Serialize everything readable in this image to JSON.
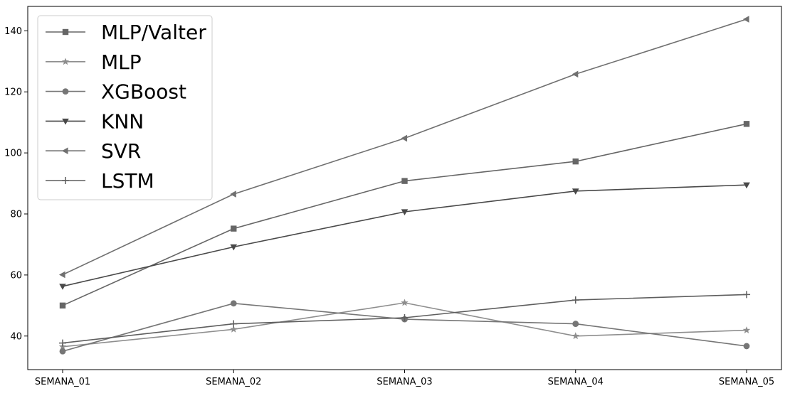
{
  "chart_data": {
    "type": "line",
    "title": "",
    "xlabel": "",
    "ylabel": "",
    "categories": [
      "SEMANA_01",
      "SEMANA_02",
      "SEMANA_03",
      "SEMANA_04",
      "SEMANA_05"
    ],
    "ylim": [
      29,
      148
    ],
    "yticks": [
      40,
      60,
      80,
      100,
      120,
      140
    ],
    "grid": false,
    "legend_position": "top-left",
    "series": [
      {
        "name": "MLP/Valter",
        "values": [
          50.0,
          75.2,
          90.8,
          97.2,
          109.5
        ],
        "marker": "square",
        "color": "#666666"
      },
      {
        "name": "MLP",
        "values": [
          36.5,
          42.2,
          50.9,
          40.0,
          41.9
        ],
        "marker": "star",
        "color": "#8e8e8e"
      },
      {
        "name": "XGBoost",
        "values": [
          35.0,
          50.7,
          45.5,
          44.0,
          36.7
        ],
        "marker": "circle",
        "color": "#767676"
      },
      {
        "name": "KNN",
        "values": [
          56.3,
          69.2,
          80.7,
          87.5,
          89.5
        ],
        "marker": "triangle-down",
        "color": "#494949"
      },
      {
        "name": "SVR",
        "values": [
          60.1,
          86.5,
          104.8,
          125.8,
          143.8
        ],
        "marker": "triangle-left",
        "color": "#707070"
      },
      {
        "name": "LSTM",
        "values": [
          37.7,
          44.0,
          46.0,
          51.8,
          53.6
        ],
        "marker": "plus",
        "color": "#5e5e5e"
      }
    ]
  }
}
